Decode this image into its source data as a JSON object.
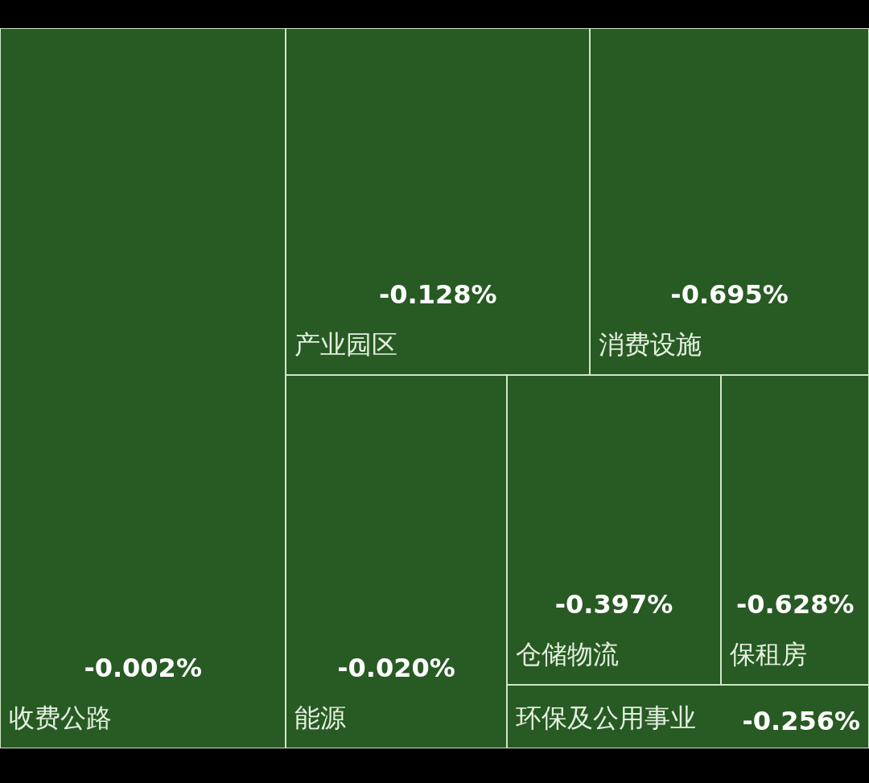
{
  "chart_data": {
    "type": "other",
    "categories": [
      "收费公路",
      "产业园区",
      "消费设施",
      "能源",
      "仓储物流",
      "保租房",
      "环保及公用事业"
    ],
    "values": [
      -0.002,
      -0.128,
      -0.695,
      -0.02,
      -0.397,
      -0.628,
      -0.256
    ],
    "value_labels": [
      "-0.002%",
      "-0.128%",
      "-0.695%",
      "-0.020%",
      "-0.397%",
      "-0.628%",
      "-0.256%"
    ],
    "color": "#285a23"
  }
}
